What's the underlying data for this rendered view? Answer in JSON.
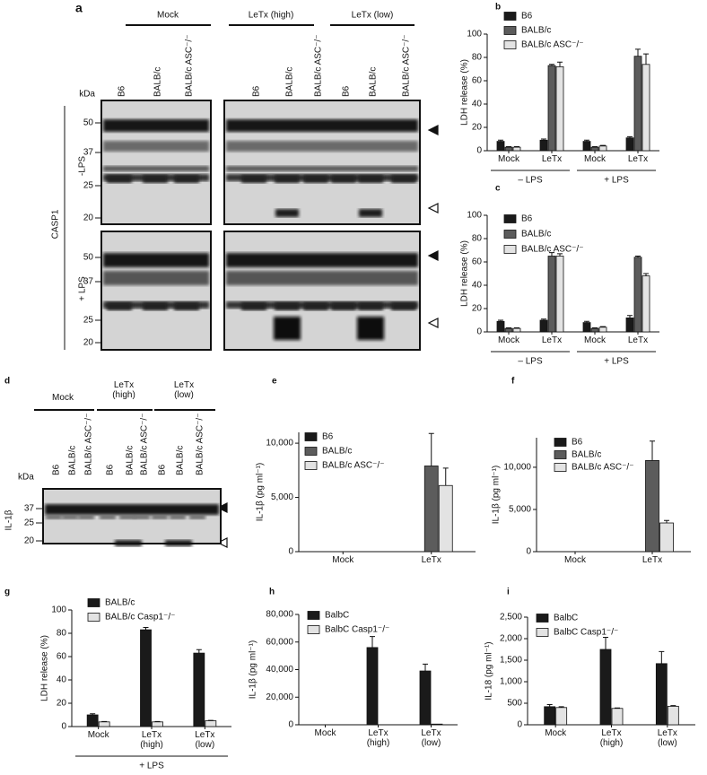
{
  "blots": [
    {
      "label": "a",
      "groups": [
        "Mock",
        "LeTx (high)",
        "LeTx (low)"
      ],
      "lanes": [
        "B6",
        "BALB/c",
        "BALB/c ASC⁻/⁻",
        "B6",
        "BALB/c",
        "BALB/c ASC⁻/⁻",
        "B6",
        "BALB/c",
        "BALB/c ASC⁻/⁻"
      ],
      "unit": "kDa",
      "markers": [
        [
          50,
          37,
          25,
          20
        ],
        [
          50,
          37,
          25,
          20
        ]
      ],
      "rows": [
        "-LPS",
        "+ LPS"
      ],
      "antibody": "CASP1"
    },
    {
      "label": "d",
      "groups": [
        "Mock",
        "LeTx (high)",
        "LeTx (low)"
      ],
      "lanes": [
        "B6",
        "BALB/c",
        "BALB/c ASC⁻/⁻",
        "B6",
        "BALB/c",
        "BALB/c ASC⁻/⁻",
        "B6",
        "BALB/c",
        "BALB/c ASC⁻/⁻"
      ],
      "unit": "kDa",
      "markers": [
        37,
        25,
        20
      ],
      "antibody": "IL-1β"
    }
  ],
  "chart_data": [
    {
      "label": "b",
      "type": "bar",
      "ylabel": "LDH release (%)",
      "categories": [
        "Mock",
        "LeTx",
        "Mock",
        "LeTx"
      ],
      "group_labels": [
        "– LPS",
        "+ LPS"
      ],
      "ylim": [
        0,
        100
      ],
      "yticks": [
        0,
        20,
        40,
        60,
        80,
        100
      ],
      "legend": "upper left",
      "series": [
        {
          "name": "B6",
          "color": "#1a1a1a",
          "values": [
            8,
            9,
            8,
            11
          ],
          "errors": [
            1,
            1,
            1,
            1
          ]
        },
        {
          "name": "BALB/c",
          "color": "#5c5c5c",
          "values": [
            3,
            73,
            3,
            81
          ],
          "errors": [
            0.5,
            1,
            0.5,
            6
          ]
        },
        {
          "name": "BALB/c ASC⁻/⁻",
          "color": "#e3e3e3",
          "values": [
            3,
            72,
            4,
            74
          ],
          "errors": [
            0.5,
            4,
            0.5,
            9
          ]
        }
      ]
    },
    {
      "label": "c",
      "type": "bar",
      "ylabel": "LDH release (%)",
      "categories": [
        "Mock",
        "LeTx",
        "Mock",
        "LeTx"
      ],
      "group_labels": [
        "– LPS",
        "+ LPS"
      ],
      "ylim": [
        0,
        100
      ],
      "yticks": [
        0,
        20,
        40,
        60,
        80,
        100
      ],
      "legend": "upper left",
      "series": [
        {
          "name": "B6",
          "color": "#1a1a1a",
          "values": [
            9,
            10,
            8,
            12
          ],
          "errors": [
            1,
            1,
            1,
            2
          ]
        },
        {
          "name": "BALB/c",
          "color": "#5c5c5c",
          "values": [
            3,
            65,
            3,
            64
          ],
          "errors": [
            0.5,
            3,
            0.5,
            1
          ]
        },
        {
          "name": "BALB/c ASC⁻/⁻",
          "color": "#e3e3e3",
          "values": [
            3,
            65,
            4,
            48
          ],
          "errors": [
            0.5,
            2,
            0.5,
            2
          ]
        }
      ]
    },
    {
      "label": "e",
      "type": "bar",
      "ylabel": "IL-1β (pg ml⁻¹)",
      "categories": [
        "Mock",
        "LeTx"
      ],
      "ylim": [
        0,
        11000
      ],
      "yticks": [
        0,
        {
          "value": 5000,
          "label": "5,000"
        },
        {
          "value": 10000,
          "label": "10,000"
        }
      ],
      "legend": "upper left",
      "series": [
        {
          "name": "B6",
          "color": "#1a1a1a",
          "values": [
            0,
            0
          ],
          "errors": [
            null,
            null
          ]
        },
        {
          "name": "BALB/c",
          "color": "#5c5c5c",
          "values": [
            0,
            7900
          ],
          "errors": [
            null,
            3000
          ]
        },
        {
          "name": "BALB/c ASC⁻/⁻",
          "color": "#e3e3e3",
          "values": [
            0,
            6100
          ],
          "errors": [
            null,
            1600
          ]
        }
      ]
    },
    {
      "label": "f",
      "type": "bar",
      "ylabel": "IL-1β (pg ml⁻¹)",
      "categories": [
        "Mock",
        "LeTx"
      ],
      "ylim": [
        0,
        13500
      ],
      "yticks": [
        0,
        {
          "value": 5000,
          "label": "5,000"
        },
        {
          "value": 10000,
          "label": "10,000"
        }
      ],
      "legend": "upper left",
      "series": [
        {
          "name": "B6",
          "color": "#1a1a1a",
          "values": [
            0,
            0
          ],
          "errors": [
            null,
            null
          ]
        },
        {
          "name": "BALB/c",
          "color": "#5c5c5c",
          "values": [
            0,
            10800
          ],
          "errors": [
            null,
            2300
          ]
        },
        {
          "name": "BALB/c ASC⁻/⁻",
          "color": "#e3e3e3",
          "values": [
            0,
            3400
          ],
          "errors": [
            null,
            300
          ]
        }
      ]
    },
    {
      "label": "g",
      "type": "bar",
      "ylabel": "LDH release (%)",
      "categories": [
        "Mock",
        "LeTx (high)",
        "LeTx (low)"
      ],
      "group_labels": [
        "+ LPS"
      ],
      "ylim": [
        0,
        100
      ],
      "yticks": [
        0,
        20,
        40,
        60,
        80,
        100
      ],
      "legend": "upper left",
      "series": [
        {
          "name": "BALB/c",
          "color": "#1a1a1a",
          "values": [
            10,
            83,
            63
          ],
          "errors": [
            1,
            2,
            3
          ]
        },
        {
          "name": "BALB/c Casp1⁻/⁻",
          "color": "#e3e3e3",
          "values": [
            4,
            4,
            5
          ],
          "errors": [
            0.3,
            0.3,
            0.3
          ]
        }
      ]
    },
    {
      "label": "h",
      "type": "bar",
      "ylabel": "IL-1β (pg ml⁻¹)",
      "categories": [
        "Mock",
        "LeTx (high)",
        "LeTx (low)"
      ],
      "ylim": [
        0,
        80000
      ],
      "yticks": [
        0,
        {
          "value": 20000,
          "label": "20,000"
        },
        {
          "value": 40000,
          "label": "40,000"
        },
        {
          "value": 60000,
          "label": "60,000"
        },
        {
          "value": 80000,
          "label": "80,000"
        }
      ],
      "legend": "upper left",
      "series": [
        {
          "name": "BalbC",
          "color": "#1a1a1a",
          "values": [
            0,
            56000,
            39000
          ],
          "errors": [
            null,
            8000,
            5000
          ]
        },
        {
          "name": "BalbC Casp1⁻/⁻",
          "color": "#e3e3e3",
          "values": [
            0,
            0,
            500
          ],
          "errors": [
            null,
            null,
            null
          ]
        }
      ]
    },
    {
      "label": "i",
      "type": "bar",
      "ylabel": "IL-18 (pg ml⁻¹)",
      "categories": [
        "Mock",
        "LeTx (high)",
        "LeTx (low)"
      ],
      "ylim": [
        0,
        2500
      ],
      "yticks": [
        0,
        500,
        {
          "value": 1000,
          "label": "1,000"
        },
        {
          "value": 1500,
          "label": "1,500"
        },
        {
          "value": 2000,
          "label": "2,000"
        },
        {
          "value": 2500,
          "label": "2,500"
        }
      ],
      "legend": "upper left",
      "series": [
        {
          "name": "BalbC",
          "color": "#1a1a1a",
          "values": [
            420,
            1750,
            1420
          ],
          "errors": [
            50,
            280,
            280
          ]
        },
        {
          "name": "BalbC Casp1⁻/⁻",
          "color": "#e3e3e3",
          "values": [
            400,
            380,
            430
          ],
          "errors": [
            20,
            10,
            15
          ]
        }
      ]
    }
  ]
}
